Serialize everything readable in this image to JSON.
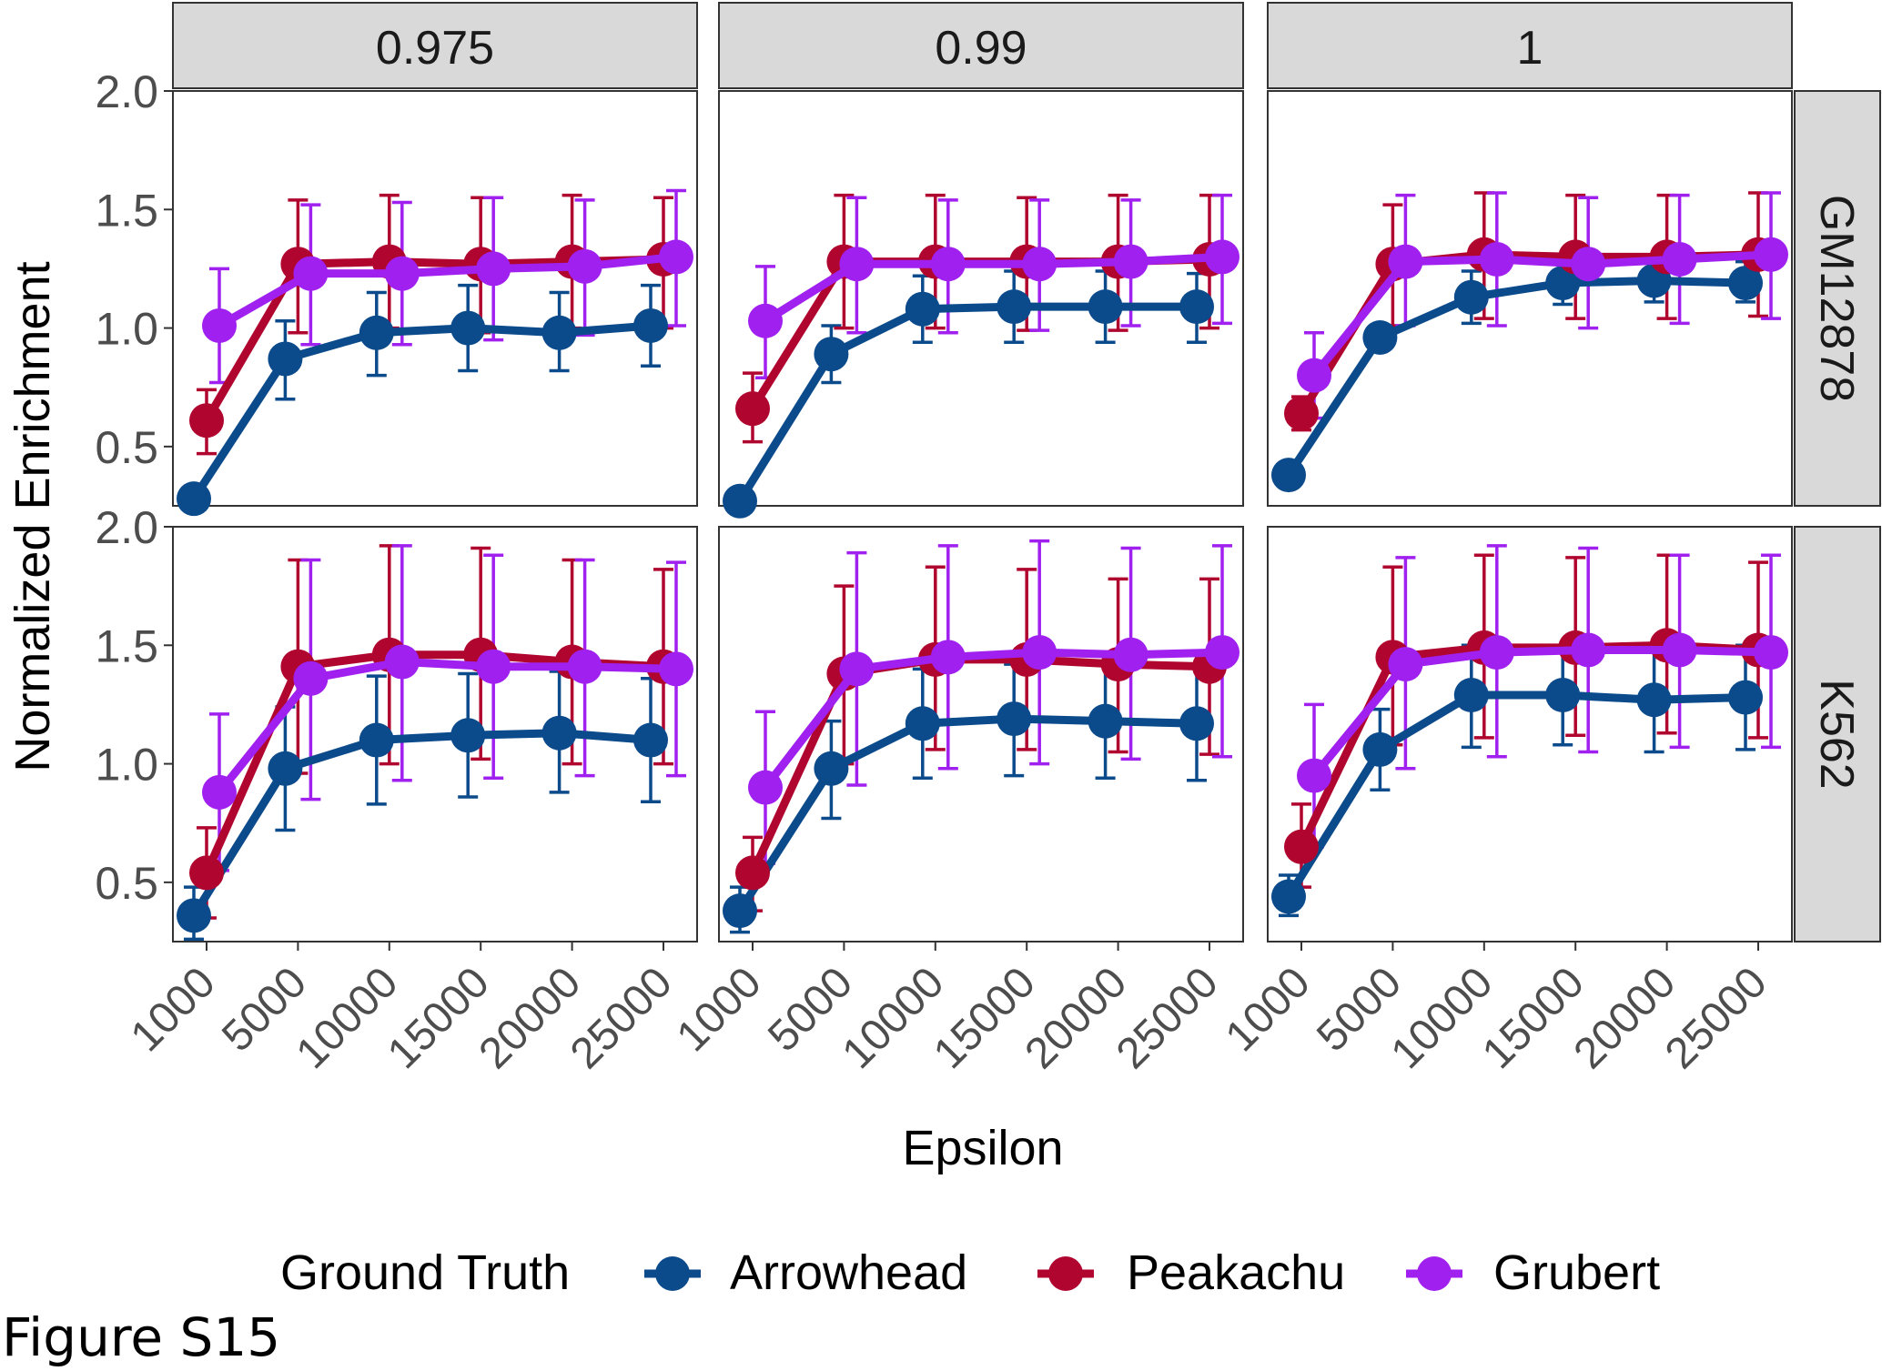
{
  "figure_label": "Figure S15",
  "chart_data": {
    "type": "line",
    "facet_columns": [
      "0.975",
      "0.99",
      "1"
    ],
    "facet_rows": [
      "GM12878",
      "K562"
    ],
    "xlabel": "Epsilon",
    "ylabel": "Normalized Enrichment",
    "x": [
      1000,
      5000,
      10000,
      15000,
      20000,
      25000
    ],
    "x_tick_labels": [
      "1000",
      "5000",
      "10000",
      "15000",
      "20000",
      "25000"
    ],
    "ylim": [
      0.25,
      2.0
    ],
    "y_ticks": [
      0.5,
      1.0,
      1.5,
      2.0
    ],
    "y_tick_labels": [
      "0.5",
      "1.0",
      "1.5",
      "2.0"
    ],
    "legend": {
      "title": "Ground Truth",
      "position": "bottom",
      "entries": [
        "Arrowhead",
        "Peakachu",
        "Grubert"
      ]
    },
    "series_colors": {
      "Arrowhead": "#0b4a8b",
      "Peakachu": "#b0052f",
      "Grubert": "#a020f0"
    },
    "grid": false,
    "error_bars": true,
    "panels": [
      {
        "column": "0.975",
        "row": "GM12878",
        "series": [
          {
            "name": "Arrowhead",
            "values": [
              0.28,
              0.87,
              0.98,
              1.0,
              0.98,
              1.01
            ],
            "lower": [
              null,
              0.7,
              0.8,
              0.82,
              0.82,
              0.84
            ],
            "upper": [
              null,
              1.03,
              1.15,
              1.18,
              1.15,
              1.18
            ]
          },
          {
            "name": "Peakachu",
            "values": [
              0.61,
              1.27,
              1.28,
              1.27,
              1.28,
              1.29
            ],
            "lower": [
              0.47,
              0.98,
              1.0,
              0.98,
              1.0,
              1.0
            ],
            "upper": [
              0.74,
              1.54,
              1.56,
              1.55,
              1.56,
              1.55
            ]
          },
          {
            "name": "Grubert",
            "values": [
              1.01,
              1.23,
              1.23,
              1.25,
              1.26,
              1.3
            ],
            "lower": [
              0.77,
              0.93,
              0.93,
              0.95,
              0.97,
              1.01
            ],
            "upper": [
              1.25,
              1.52,
              1.53,
              1.55,
              1.54,
              1.58
            ]
          }
        ]
      },
      {
        "column": "0.99",
        "row": "GM12878",
        "series": [
          {
            "name": "Arrowhead",
            "values": [
              0.27,
              0.89,
              1.08,
              1.09,
              1.09,
              1.09
            ],
            "lower": [
              null,
              0.77,
              0.94,
              0.94,
              0.94,
              0.94
            ],
            "upper": [
              null,
              1.01,
              1.22,
              1.24,
              1.24,
              1.23
            ]
          },
          {
            "name": "Peakachu",
            "values": [
              0.66,
              1.28,
              1.28,
              1.28,
              1.28,
              1.29
            ],
            "lower": [
              0.52,
              1.0,
              1.0,
              0.99,
              0.99,
              1.0
            ],
            "upper": [
              0.81,
              1.56,
              1.56,
              1.55,
              1.56,
              1.56
            ]
          },
          {
            "name": "Grubert",
            "values": [
              1.03,
              1.27,
              1.27,
              1.27,
              1.28,
              1.3
            ],
            "lower": [
              0.79,
              0.98,
              0.98,
              0.99,
              1.01,
              1.02
            ],
            "upper": [
              1.26,
              1.55,
              1.54,
              1.54,
              1.54,
              1.56
            ]
          }
        ]
      },
      {
        "column": "1",
        "row": "GM12878",
        "series": [
          {
            "name": "Arrowhead",
            "values": [
              0.38,
              0.96,
              1.13,
              1.19,
              1.2,
              1.19
            ],
            "lower": [
              null,
              0.91,
              1.02,
              1.1,
              1.11,
              1.11
            ],
            "upper": [
              null,
              1.01,
              1.24,
              1.28,
              1.29,
              1.28
            ]
          },
          {
            "name": "Peakachu",
            "values": [
              0.64,
              1.27,
              1.31,
              1.3,
              1.3,
              1.31
            ],
            "lower": [
              0.57,
              1.01,
              1.04,
              1.04,
              1.04,
              1.05
            ],
            "upper": [
              0.71,
              1.52,
              1.57,
              1.56,
              1.56,
              1.57
            ]
          },
          {
            "name": "Grubert",
            "values": [
              0.8,
              1.28,
              1.29,
              1.27,
              1.29,
              1.31
            ],
            "lower": [
              0.62,
              1.01,
              1.01,
              1.0,
              1.02,
              1.04
            ],
            "upper": [
              0.98,
              1.56,
              1.57,
              1.55,
              1.56,
              1.57
            ]
          }
        ]
      },
      {
        "column": "0.975",
        "row": "K562",
        "series": [
          {
            "name": "Arrowhead",
            "values": [
              0.36,
              0.98,
              1.1,
              1.12,
              1.13,
              1.1
            ],
            "lower": [
              0.26,
              0.72,
              0.83,
              0.86,
              0.88,
              0.84
            ],
            "upper": [
              0.48,
              1.24,
              1.37,
              1.38,
              1.39,
              1.36
            ]
          },
          {
            "name": "Peakachu",
            "values": [
              0.54,
              1.41,
              1.46,
              1.46,
              1.43,
              1.41
            ],
            "lower": [
              0.35,
              0.96,
              1.0,
              1.02,
              1.0,
              1.0
            ],
            "upper": [
              0.73,
              1.86,
              1.92,
              1.91,
              1.86,
              1.82
            ]
          },
          {
            "name": "Grubert",
            "values": [
              0.88,
              1.36,
              1.43,
              1.41,
              1.41,
              1.4
            ],
            "lower": [
              0.55,
              0.85,
              0.93,
              0.94,
              0.95,
              0.95
            ],
            "upper": [
              1.21,
              1.86,
              1.92,
              1.88,
              1.86,
              1.85
            ]
          }
        ]
      },
      {
        "column": "0.99",
        "row": "K562",
        "series": [
          {
            "name": "Arrowhead",
            "values": [
              0.38,
              0.98,
              1.17,
              1.19,
              1.18,
              1.17
            ],
            "lower": [
              0.29,
              0.77,
              0.94,
              0.95,
              0.94,
              0.93
            ],
            "upper": [
              0.48,
              1.18,
              1.4,
              1.42,
              1.42,
              1.41
            ]
          },
          {
            "name": "Peakachu",
            "values": [
              0.54,
              1.38,
              1.44,
              1.44,
              1.42,
              1.41
            ],
            "lower": [
              0.38,
              1.0,
              1.06,
              1.06,
              1.05,
              1.04
            ],
            "upper": [
              0.69,
              1.75,
              1.83,
              1.82,
              1.78,
              1.78
            ]
          },
          {
            "name": "Grubert",
            "values": [
              0.9,
              1.4,
              1.45,
              1.47,
              1.46,
              1.47
            ],
            "lower": [
              0.58,
              0.91,
              0.98,
              1.0,
              1.02,
              1.03
            ],
            "upper": [
              1.22,
              1.89,
              1.92,
              1.94,
              1.91,
              1.92
            ]
          }
        ]
      },
      {
        "column": "1",
        "row": "K562",
        "series": [
          {
            "name": "Arrowhead",
            "values": [
              0.44,
              1.06,
              1.29,
              1.29,
              1.27,
              1.28
            ],
            "lower": [
              0.36,
              0.89,
              1.07,
              1.08,
              1.05,
              1.06
            ],
            "upper": [
              0.53,
              1.23,
              1.5,
              1.5,
              1.49,
              1.5
            ]
          },
          {
            "name": "Peakachu",
            "values": [
              0.65,
              1.45,
              1.49,
              1.49,
              1.5,
              1.48
            ],
            "lower": [
              0.48,
              1.08,
              1.11,
              1.12,
              1.13,
              1.11
            ],
            "upper": [
              0.83,
              1.83,
              1.88,
              1.87,
              1.88,
              1.85
            ]
          },
          {
            "name": "Grubert",
            "values": [
              0.95,
              1.42,
              1.47,
              1.48,
              1.48,
              1.47
            ],
            "lower": [
              0.65,
              0.98,
              1.03,
              1.05,
              1.07,
              1.07
            ],
            "upper": [
              1.25,
              1.87,
              1.92,
              1.91,
              1.88,
              1.88
            ]
          }
        ]
      }
    ]
  }
}
